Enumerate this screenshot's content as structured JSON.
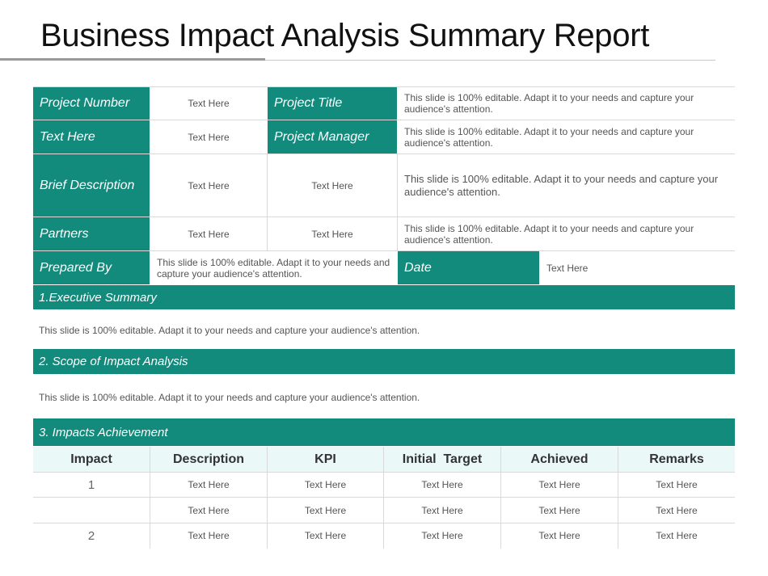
{
  "title": "Business Impact Analysis Summary Report",
  "colors": {
    "accent": "#128a7c",
    "header_bg": "#eaf8f8"
  },
  "info": {
    "project_number_label": "Project Number",
    "project_number_value": "Text Here",
    "project_title_label": "Project Title",
    "project_title_value": "This slide is 100% editable. Adapt it to your needs and capture your audience's attention.",
    "text_here_label": "Text Here",
    "text_here_value": "Text Here",
    "project_manager_label": "Project Manager",
    "project_manager_value": "This slide is 100% editable. Adapt it to your needs and capture your audience's attention.",
    "brief_label": "Brief Description",
    "brief_value_1": "Text Here",
    "brief_value_2": "Text Here",
    "brief_value_3": "This slide is 100% editable.  Adapt it to your needs and capture your audience's attention.",
    "partners_label": "Partners",
    "partners_value_1": "Text Here",
    "partners_value_2": "Text Here",
    "partners_value_3": "This slide is 100% editable. Adapt it to your needs and capture your audience's attention.",
    "prepared_label": "Prepared By",
    "prepared_value": "This slide is 100% editable. Adapt it to your needs and capture your audience's attention.",
    "date_label": "Date",
    "date_value": "Text Here"
  },
  "sections": [
    {
      "heading": "1.Executive Summary",
      "body": "This slide is 100% editable. Adapt it to your needs and capture your audience's attention."
    },
    {
      "heading": "2. Scope of Impact Analysis",
      "body": "This slide is 100% editable. Adapt it to your needs and capture your audience's attention."
    },
    {
      "heading": "3. Impacts Achievement"
    }
  ],
  "impacts_table": {
    "headers": [
      "Impact",
      "Description",
      "KPI",
      "Initial  Target",
      "Achieved",
      "Remarks"
    ],
    "rows": [
      [
        "1",
        "Text Here",
        "Text Here",
        "Text Here",
        "Text Here",
        "Text Here"
      ],
      [
        "",
        "Text Here",
        "Text Here",
        "Text Here",
        "Text Here",
        "Text Here"
      ],
      [
        "2",
        "Text Here",
        "Text Here",
        "Text Here",
        "Text Here",
        "Text Here"
      ]
    ]
  }
}
